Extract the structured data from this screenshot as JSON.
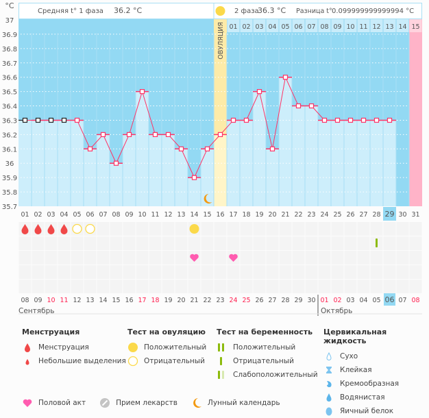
{
  "header": {
    "phase1_label": "Средняя t° 1 фаза",
    "phase1_value": "36.2 °C",
    "phase2_label": "2 фаза",
    "phase2_value": "36.3 °C",
    "diff_label": "Разница t°",
    "diff_value": "0.099999999999994 °C",
    "ovulation_label": "ОВУЛЯЦИЯ"
  },
  "chart_data": {
    "type": "line",
    "ylabel": "°C",
    "ylim": [
      35.7,
      37
    ],
    "yticks": [
      "37",
      "36.9",
      "36.8",
      "36.7",
      "36.6",
      "36.5",
      "36.4",
      "36.3",
      "36.2",
      "36.1",
      "36",
      "35.9",
      "35.8",
      "35.7"
    ],
    "cycle_days": [
      "01",
      "02",
      "03",
      "04",
      "05",
      "06",
      "07",
      "08",
      "09",
      "10",
      "11",
      "12",
      "13",
      "14",
      "15",
      "16",
      "17",
      "18",
      "19",
      "20",
      "21",
      "22",
      "23",
      "24",
      "25",
      "26",
      "27",
      "28",
      "29",
      "30",
      "31"
    ],
    "temperatures": [
      36.3,
      36.3,
      36.3,
      36.3,
      36.3,
      36.1,
      36.2,
      36.0,
      36.2,
      36.5,
      36.2,
      36.2,
      36.1,
      35.9,
      36.1,
      36.2,
      36.3,
      36.3,
      36.5,
      36.1,
      36.6,
      36.4,
      36.4,
      36.3,
      36.3,
      36.3,
      36.3,
      36.3,
      36.3,
      null,
      null
    ],
    "black_marker_days": [
      1,
      2,
      3,
      4
    ],
    "ovulation_day": 16,
    "phase2_days": [
      "01",
      "02",
      "03",
      "04",
      "05",
      "06",
      "07",
      "08",
      "09",
      "10",
      "11",
      "12",
      "13",
      "14",
      "15"
    ],
    "next_period_day": 31,
    "current_day": 29,
    "grid": true,
    "colors": {
      "line": "#ff3366",
      "bar": "#cdeefb",
      "background": "#93d9f3",
      "ovulation": "#fdeba8",
      "period": "#ffb3c8"
    }
  },
  "markers": {
    "menstruation_days": [
      1,
      2,
      3,
      4
    ],
    "ovulation_test_negative_days": [
      5,
      6
    ],
    "ovulation_test_positive_days": [
      14
    ],
    "pregnancy_test_negative_days": [
      28
    ],
    "intercourse_days": [
      14,
      17
    ],
    "moon_days": [
      15
    ]
  },
  "calendar": {
    "dates": [
      "08",
      "09",
      "10",
      "11",
      "12",
      "13",
      "14",
      "15",
      "16",
      "17",
      "18",
      "19",
      "20",
      "21",
      "22",
      "23",
      "24",
      "25",
      "26",
      "27",
      "28",
      "29",
      "30",
      "01",
      "02",
      "03",
      "04",
      "05",
      "06",
      "07",
      "08"
    ],
    "weekend_indexes": [
      2,
      3,
      9,
      10,
      16,
      17,
      23,
      24,
      30
    ],
    "today_index": 28,
    "month1": "Сентябрь",
    "month2": "Октябрь"
  },
  "legend": {
    "menstruation": {
      "title": "Менструация",
      "items": [
        "Менструация",
        "Небольшие выделения"
      ]
    },
    "ovulation_test": {
      "title": "Тест на овуляцию",
      "items": [
        "Положительный",
        "Отрицательный"
      ]
    },
    "pregnancy_test": {
      "title": "Тест на беременность",
      "items": [
        "Положительный",
        "Отрицательный",
        "Слабоположительный"
      ]
    },
    "cervical_fluid": {
      "title": "Цервикальная жидкость",
      "items": [
        "Сухо",
        "Клейкая",
        "Кремообразная",
        "Водянистая",
        "Яичный белок"
      ]
    },
    "other": [
      "Половой акт",
      "Прием лекарств",
      "Лунный календарь"
    ]
  }
}
